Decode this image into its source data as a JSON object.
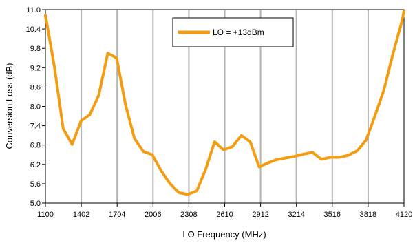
{
  "chart_data": {
    "type": "line",
    "title": "",
    "xlabel": "LO Frequency (MHz)",
    "ylabel": "Conversion Loss (dB)",
    "xlim": [
      1100,
      4120
    ],
    "ylim": [
      5.0,
      11.0
    ],
    "xticks": [
      1100,
      1402,
      1704,
      2006,
      2308,
      2610,
      2912,
      3214,
      3516,
      3818,
      4120
    ],
    "yticks": [
      "5.0",
      "5.6",
      "6.2",
      "6.8",
      "7.4",
      "8.0",
      "8.6",
      "9.2",
      "9.8",
      "10.4",
      "11.0"
    ],
    "grid": "vertical",
    "legend_position": "top-center",
    "series": [
      {
        "name": "LO = +13dBm",
        "color": "#f39c12",
        "x": [
          1100,
          1175,
          1250,
          1325,
          1400,
          1475,
          1550,
          1625,
          1700,
          1775,
          1850,
          1925,
          2000,
          2075,
          2150,
          2225,
          2300,
          2375,
          2450,
          2525,
          2600,
          2675,
          2750,
          2825,
          2900,
          2975,
          3050,
          3125,
          3200,
          3275,
          3350,
          3425,
          3500,
          3575,
          3650,
          3725,
          3800,
          3875,
          3950,
          4025,
          4100,
          4120
        ],
        "y": [
          10.82,
          9.25,
          7.3,
          6.82,
          7.55,
          7.75,
          8.35,
          9.65,
          9.5,
          8.05,
          7.0,
          6.6,
          6.5,
          6.0,
          5.6,
          5.32,
          5.27,
          5.38,
          6.05,
          6.9,
          6.65,
          6.75,
          7.1,
          6.9,
          6.12,
          6.25,
          6.35,
          6.4,
          6.45,
          6.52,
          6.57,
          6.36,
          6.42,
          6.42,
          6.48,
          6.62,
          6.95,
          7.7,
          8.5,
          9.6,
          10.6,
          10.95
        ]
      }
    ]
  }
}
